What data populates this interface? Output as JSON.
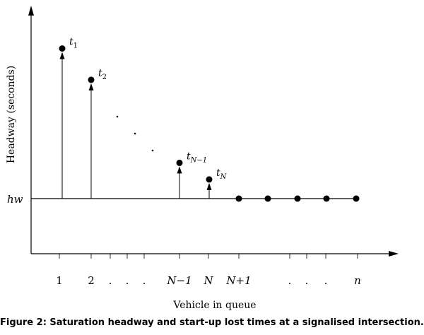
{
  "figure": {
    "ylabel": "Headway (seconds)",
    "xlabel": "Vehicle in queue",
    "baseline_label": "hw",
    "caption": "Figure 2: Saturation headway and start-up lost times at a signalised intersection."
  },
  "x_ticks": [
    "1",
    "2",
    ".",
    ".",
    ".",
    "N−1",
    "N",
    "N+1",
    ".",
    ".",
    ".",
    "n"
  ],
  "arrows": [
    {
      "label_main": "t",
      "label_sub": "1",
      "level": 0.81
    },
    {
      "label_main": "t",
      "label_sub": "2",
      "level": 0.64
    },
    {
      "label_main": "t",
      "label_sub": "N−1",
      "level": 0.19
    },
    {
      "label_main": "t",
      "label_sub": "N",
      "level": 0.1
    }
  ],
  "decay_dots": 3,
  "baseline_points": 5
}
